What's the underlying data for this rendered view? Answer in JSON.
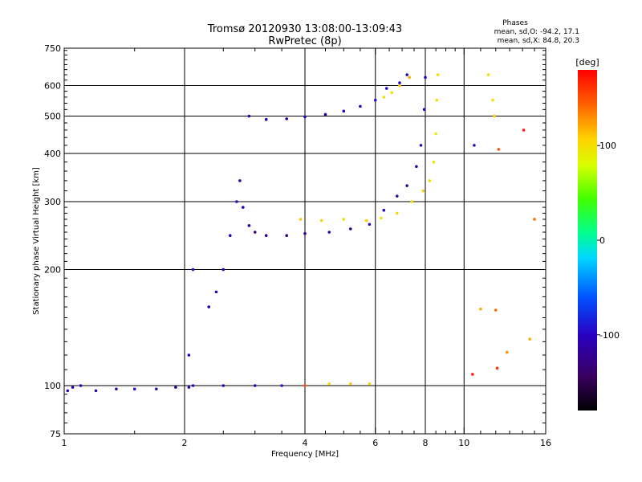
{
  "chart_data": {
    "type": "scatter",
    "title": "Tromsø 20120930 13:08:00-13:09:43",
    "subtitle": "RwPretec (8p)",
    "stats": {
      "header": "Phases",
      "line_o": "mean, sd,O: -94.2, 17.1",
      "line_x": "mean, sd,X:  84.8, 20.3"
    },
    "xlabel": "Frequency [MHz]",
    "ylabel": "Stationary phase Virtual Height [km]",
    "xscale": "log",
    "yscale": "log",
    "xlim": [
      1,
      16
    ],
    "ylim": [
      75,
      750
    ],
    "grid": true,
    "xticks": [
      1,
      2,
      4,
      6,
      8,
      10,
      16
    ],
    "xtick_labels": [
      "1",
      "2",
      "4",
      "6",
      "8",
      "10",
      "16"
    ],
    "xgrid": [
      2,
      4,
      6,
      8,
      10
    ],
    "yticks": [
      75,
      100,
      200,
      300,
      400,
      500,
      600,
      750
    ],
    "ytick_labels": [
      "75",
      "100",
      "200",
      "300",
      "400",
      "500",
      "600",
      "750"
    ],
    "ygrid": [
      100,
      200,
      300,
      400,
      500,
      600
    ],
    "colorbar": {
      "label": "[deg]",
      "range": [
        -180,
        180
      ],
      "ticks": [
        100,
        0,
        -100
      ],
      "tick_labels": [
        "100",
        "0",
        "-100"
      ]
    },
    "series": [
      {
        "values": [
          {
            "x": 1.02,
            "y": 97,
            "phase": -110
          },
          {
            "x": 1.05,
            "y": 99,
            "phase": -105
          },
          {
            "x": 1.1,
            "y": 100,
            "phase": -100
          },
          {
            "x": 1.2,
            "y": 97,
            "phase": -110
          },
          {
            "x": 1.35,
            "y": 98,
            "phase": -120
          },
          {
            "x": 1.5,
            "y": 98,
            "phase": -100
          },
          {
            "x": 1.7,
            "y": 98,
            "phase": -105
          },
          {
            "x": 1.9,
            "y": 99,
            "phase": -110
          },
          {
            "x": 2.05,
            "y": 99,
            "phase": -100
          }
        ]
      },
      {
        "values": [
          {
            "x": 2.1,
            "y": 100,
            "phase": -100
          },
          {
            "x": 2.5,
            "y": 100,
            "phase": -110
          },
          {
            "x": 3.0,
            "y": 100,
            "phase": -105
          },
          {
            "x": 3.5,
            "y": 100,
            "phase": -90
          },
          {
            "x": 4.0,
            "y": 100,
            "phase": 150
          },
          {
            "x": 4.6,
            "y": 101,
            "phase": 100
          },
          {
            "x": 5.2,
            "y": 101,
            "phase": 110
          },
          {
            "x": 5.8,
            "y": 101,
            "phase": 105
          }
        ]
      },
      {
        "values": [
          {
            "x": 2.05,
            "y": 120,
            "phase": -100
          },
          {
            "x": 2.1,
            "y": 200,
            "phase": -95
          },
          {
            "x": 2.3,
            "y": 160,
            "phase": -110
          },
          {
            "x": 2.4,
            "y": 175,
            "phase": -100
          },
          {
            "x": 2.5,
            "y": 200,
            "phase": -105
          },
          {
            "x": 2.6,
            "y": 245,
            "phase": -100
          },
          {
            "x": 2.7,
            "y": 300,
            "phase": -95
          },
          {
            "x": 2.75,
            "y": 340,
            "phase": -100
          },
          {
            "x": 2.8,
            "y": 290,
            "phase": -100
          },
          {
            "x": 2.9,
            "y": 260,
            "phase": -110
          },
          {
            "x": 3.0,
            "y": 250,
            "phase": -130
          },
          {
            "x": 3.2,
            "y": 245,
            "phase": -120
          },
          {
            "x": 3.6,
            "y": 245,
            "phase": -130
          },
          {
            "x": 4.0,
            "y": 248,
            "phase": -120
          },
          {
            "x": 4.6,
            "y": 250,
            "phase": -110
          },
          {
            "x": 5.2,
            "y": 255,
            "phase": -110
          },
          {
            "x": 5.8,
            "y": 262,
            "phase": -105
          },
          {
            "x": 6.3,
            "y": 285,
            "phase": -100
          },
          {
            "x": 6.8,
            "y": 310,
            "phase": -110
          },
          {
            "x": 7.2,
            "y": 330,
            "phase": -120
          },
          {
            "x": 7.6,
            "y": 370,
            "phase": -110
          },
          {
            "x": 7.8,
            "y": 420,
            "phase": -110
          },
          {
            "x": 7.95,
            "y": 520,
            "phase": -100
          },
          {
            "x": 8.0,
            "y": 630,
            "phase": -100
          }
        ]
      },
      {
        "values": [
          {
            "x": 3.9,
            "y": 270,
            "phase": 110
          },
          {
            "x": 4.4,
            "y": 268,
            "phase": 105
          },
          {
            "x": 5.0,
            "y": 270,
            "phase": 100
          },
          {
            "x": 5.7,
            "y": 268,
            "phase": 110
          },
          {
            "x": 6.2,
            "y": 272,
            "phase": 100
          },
          {
            "x": 6.8,
            "y": 280,
            "phase": 105
          },
          {
            "x": 7.4,
            "y": 300,
            "phase": 100
          },
          {
            "x": 7.9,
            "y": 320,
            "phase": 110
          },
          {
            "x": 8.2,
            "y": 340,
            "phase": 105
          },
          {
            "x": 8.4,
            "y": 380,
            "phase": 100
          },
          {
            "x": 8.5,
            "y": 450,
            "phase": 90
          },
          {
            "x": 8.55,
            "y": 550,
            "phase": 100
          },
          {
            "x": 8.6,
            "y": 640,
            "phase": 100
          }
        ]
      },
      {
        "values": [
          {
            "x": 2.9,
            "y": 500,
            "phase": -100
          },
          {
            "x": 3.2,
            "y": 490,
            "phase": -110
          },
          {
            "x": 3.6,
            "y": 492,
            "phase": -115
          },
          {
            "x": 4.0,
            "y": 498,
            "phase": -100
          },
          {
            "x": 4.5,
            "y": 505,
            "phase": -100
          },
          {
            "x": 5.0,
            "y": 515,
            "phase": -105
          },
          {
            "x": 5.5,
            "y": 530,
            "phase": -100
          },
          {
            "x": 6.0,
            "y": 550,
            "phase": -95
          }
        ]
      },
      {
        "values": [
          {
            "x": 6.3,
            "y": 560,
            "phase": 100
          },
          {
            "x": 6.6,
            "y": 575,
            "phase": 95
          },
          {
            "x": 6.9,
            "y": 600,
            "phase": 110
          },
          {
            "x": 7.3,
            "y": 630,
            "phase": 120
          },
          {
            "x": 6.4,
            "y": 590,
            "phase": -100
          },
          {
            "x": 6.9,
            "y": 610,
            "phase": -100
          },
          {
            "x": 7.2,
            "y": 640,
            "phase": -105
          }
        ]
      },
      {
        "values": [
          {
            "x": 10.6,
            "y": 420,
            "phase": -100
          },
          {
            "x": 11.8,
            "y": 550,
            "phase": 100
          },
          {
            "x": 11.9,
            "y": 500,
            "phase": 110
          },
          {
            "x": 11.5,
            "y": 640,
            "phase": 100
          },
          {
            "x": 12.2,
            "y": 410,
            "phase": 150
          },
          {
            "x": 14.1,
            "y": 460,
            "phase": 170
          },
          {
            "x": 15.0,
            "y": 270,
            "phase": 140
          },
          {
            "x": 11.0,
            "y": 158,
            "phase": 120
          },
          {
            "x": 12.0,
            "y": 157,
            "phase": 140
          },
          {
            "x": 12.8,
            "y": 122,
            "phase": 130
          },
          {
            "x": 14.6,
            "y": 132,
            "phase": 120
          },
          {
            "x": 12.1,
            "y": 111,
            "phase": 160
          },
          {
            "x": 10.5,
            "y": 107,
            "phase": 170
          }
        ]
      }
    ]
  }
}
